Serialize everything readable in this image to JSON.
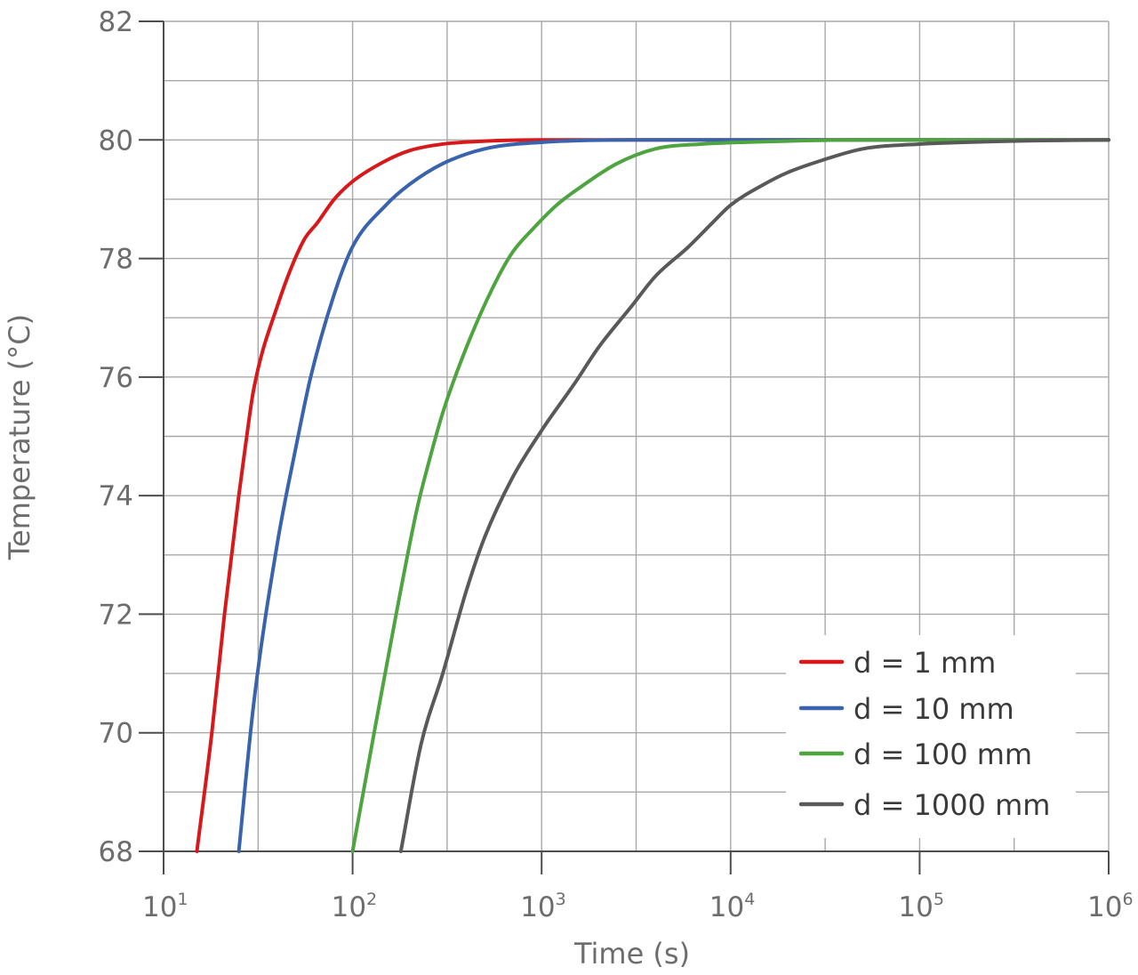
{
  "chart_data": {
    "type": "line",
    "xlabel": "Time (s)",
    "ylabel": "Temperature (°C)",
    "x_scale": "log",
    "xlim": [
      10,
      1000000
    ],
    "ylim": [
      68,
      82
    ],
    "x_ticks": [
      {
        "base": "10",
        "exp": "1",
        "value": 10
      },
      {
        "base": "10",
        "exp": "2",
        "value": 100
      },
      {
        "base": "10",
        "exp": "3",
        "value": 1000
      },
      {
        "base": "10",
        "exp": "4",
        "value": 10000
      },
      {
        "base": "10",
        "exp": "5",
        "value": 100000
      },
      {
        "base": "10",
        "exp": "6",
        "value": 1000000
      }
    ],
    "y_ticks": [
      "68",
      "70",
      "72",
      "74",
      "76",
      "78",
      "80",
      "82"
    ],
    "grid": true,
    "legend_position": "bottom-right",
    "series": [
      {
        "name": "d = 1 mm",
        "color": "#d7191c",
        "points": [
          [
            15,
            68
          ],
          [
            18,
            70
          ],
          [
            21,
            72
          ],
          [
            25,
            74
          ],
          [
            27,
            74.8
          ],
          [
            30,
            75.8
          ],
          [
            40,
            77.2
          ],
          [
            55,
            78.3
          ],
          [
            65,
            78.6
          ],
          [
            80,
            79.0
          ],
          [
            100,
            79.3
          ],
          [
            150,
            79.65
          ],
          [
            200,
            79.82
          ],
          [
            300,
            79.93
          ],
          [
            500,
            79.98
          ],
          [
            1000,
            80.0
          ],
          [
            1000000,
            80.0
          ]
        ]
      },
      {
        "name": "d = 10 mm",
        "color": "#3a63ad",
        "points": [
          [
            25,
            68
          ],
          [
            30,
            70.5
          ],
          [
            40,
            73.2
          ],
          [
            50,
            74.8
          ],
          [
            60,
            76.0
          ],
          [
            80,
            77.4
          ],
          [
            100,
            78.2
          ],
          [
            150,
            78.9
          ],
          [
            200,
            79.25
          ],
          [
            300,
            79.6
          ],
          [
            500,
            79.85
          ],
          [
            1000,
            79.96
          ],
          [
            3000,
            80.0
          ],
          [
            1000000,
            80.0
          ]
        ]
      },
      {
        "name": "d = 100 mm",
        "color": "#4ea43f",
        "points": [
          [
            100,
            68
          ],
          [
            130,
            70
          ],
          [
            170,
            72
          ],
          [
            220,
            73.8
          ],
          [
            250,
            74.5
          ],
          [
            300,
            75.4
          ],
          [
            400,
            76.5
          ],
          [
            550,
            77.5
          ],
          [
            700,
            78.1
          ],
          [
            900,
            78.5
          ],
          [
            1200,
            78.9
          ],
          [
            1600,
            79.2
          ],
          [
            2500,
            79.6
          ],
          [
            4000,
            79.85
          ],
          [
            7000,
            79.93
          ],
          [
            15000,
            79.97
          ],
          [
            50000,
            80.0
          ],
          [
            1000000,
            80.0
          ]
        ]
      },
      {
        "name": "d = 1000 mm",
        "color": "#595959",
        "points": [
          [
            180,
            68
          ],
          [
            230,
            69.8
          ],
          [
            300,
            71.0
          ],
          [
            400,
            72.4
          ],
          [
            500,
            73.3
          ],
          [
            700,
            74.3
          ],
          [
            1000,
            75.1
          ],
          [
            1500,
            75.9
          ],
          [
            2000,
            76.5
          ],
          [
            3000,
            77.2
          ],
          [
            4000,
            77.7
          ],
          [
            6000,
            78.2
          ],
          [
            8000,
            78.6
          ],
          [
            10000,
            78.9
          ],
          [
            15000,
            79.25
          ],
          [
            20000,
            79.45
          ],
          [
            30000,
            79.65
          ],
          [
            50000,
            79.85
          ],
          [
            100000,
            79.93
          ],
          [
            300000,
            79.98
          ],
          [
            1000000,
            80.0
          ]
        ]
      }
    ]
  }
}
